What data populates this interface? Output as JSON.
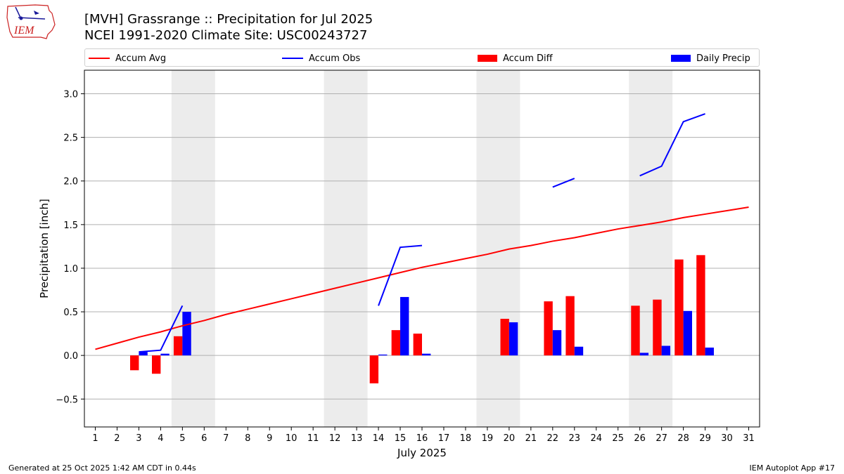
{
  "header": {
    "title_line1": "[MVH] Grassrange :: Precipitation for Jul 2025",
    "title_line2": "NCEI 1991-2020 Climate Site: USC00243727"
  },
  "logo": {
    "text": "IEM"
  },
  "legend": {
    "accum_avg": "Accum Avg",
    "accum_obs": "Accum Obs",
    "accum_diff": "Accum Diff",
    "daily_precip": "Daily Precip"
  },
  "footer": {
    "left": "Generated at 25 Oct 2025 1:42 AM CDT in 0.44s",
    "right": "IEM Autoplot App #17"
  },
  "colors": {
    "avg": "#ff0000",
    "obs": "#0000ff",
    "diff": "#ff0000",
    "daily": "#0000ff",
    "weekend": "#ececec",
    "grid": "#b0b0b0"
  },
  "chart_data": {
    "type": "bar",
    "xlabel": "July 2025",
    "ylabel": "Precipitation [inch]",
    "xlim": [
      0.5,
      31.5
    ],
    "ylim": [
      -0.82,
      3.27
    ],
    "yticks": [
      -0.5,
      0.0,
      0.5,
      1.0,
      1.5,
      2.0,
      2.5,
      3.0
    ],
    "ytick_labels": [
      "−0.5",
      "0.0",
      "0.5",
      "1.0",
      "1.5",
      "2.0",
      "2.5",
      "3.0"
    ],
    "days": [
      1,
      2,
      3,
      4,
      5,
      6,
      7,
      8,
      9,
      10,
      11,
      12,
      13,
      14,
      15,
      16,
      17,
      18,
      19,
      20,
      21,
      22,
      23,
      24,
      25,
      26,
      27,
      28,
      29,
      30,
      31
    ],
    "weekend_spans": [
      [
        5,
        6
      ],
      [
        12,
        13
      ],
      [
        19,
        20
      ],
      [
        26,
        27
      ]
    ],
    "accum_avg": [
      0.07,
      0.14,
      0.21,
      0.27,
      0.34,
      0.4,
      0.47,
      0.53,
      0.59,
      0.65,
      0.71,
      0.77,
      0.83,
      0.89,
      0.95,
      1.01,
      1.06,
      1.11,
      1.16,
      1.22,
      1.26,
      1.31,
      1.35,
      1.4,
      1.45,
      1.49,
      1.53,
      1.58,
      1.62,
      1.66,
      1.7
    ],
    "accum_obs_segments": [
      [
        [
          3,
          0.04
        ],
        [
          4,
          0.06
        ],
        [
          5,
          0.57
        ]
      ],
      [
        [
          14,
          0.57
        ],
        [
          15,
          1.24
        ],
        [
          16,
          1.26
        ]
      ],
      [
        [
          22,
          1.93
        ],
        [
          23,
          2.03
        ]
      ],
      [
        [
          26,
          2.06
        ],
        [
          27,
          2.17
        ],
        [
          28,
          2.68
        ],
        [
          29,
          2.77
        ]
      ]
    ],
    "accum_diff": [
      [
        3,
        -0.17
      ],
      [
        4,
        -0.21
      ],
      [
        5,
        0.22
      ],
      [
        14,
        -0.32
      ],
      [
        15,
        0.29
      ],
      [
        16,
        0.25
      ],
      [
        20,
        0.42
      ],
      [
        22,
        0.62
      ],
      [
        23,
        0.68
      ],
      [
        26,
        0.57
      ],
      [
        27,
        0.64
      ],
      [
        28,
        1.1
      ],
      [
        29,
        1.15
      ]
    ],
    "daily_precip": [
      [
        3,
        0.04
      ],
      [
        4,
        0.02
      ],
      [
        5,
        0.5
      ],
      [
        14,
        0.01
      ],
      [
        15,
        0.67
      ],
      [
        16,
        0.02
      ],
      [
        20,
        0.38
      ],
      [
        22,
        0.29
      ],
      [
        23,
        0.1
      ],
      [
        26,
        0.03
      ],
      [
        27,
        0.11
      ],
      [
        28,
        0.51
      ],
      [
        29,
        0.09
      ]
    ]
  }
}
